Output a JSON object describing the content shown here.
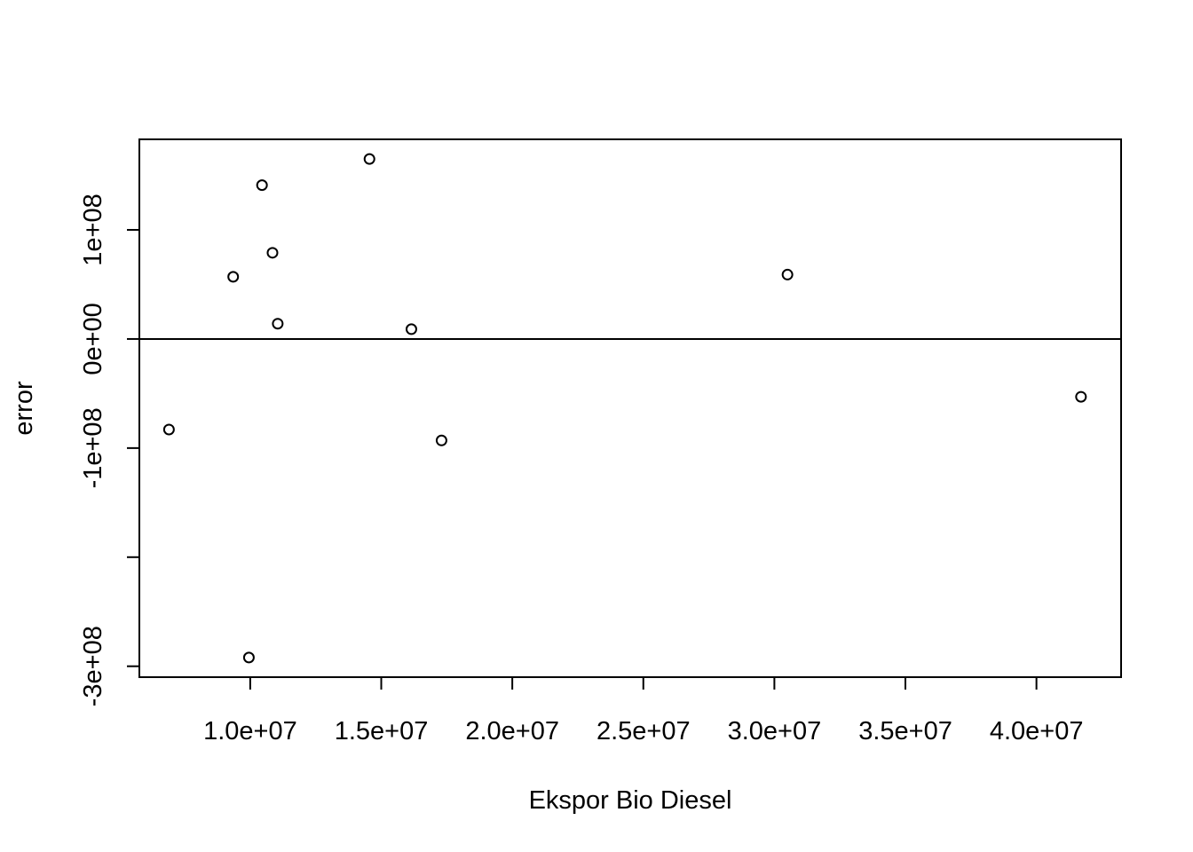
{
  "chart_data": {
    "type": "scatter",
    "title": "",
    "xlabel": "Ekspor Bio Diesel",
    "ylabel": "error",
    "xlim": [
      5770000,
      43230000
    ],
    "ylim": [
      -310000000,
      183000000
    ],
    "x_ticks": [
      10000000,
      15000000,
      20000000,
      25000000,
      30000000,
      35000000,
      40000000
    ],
    "x_tick_labels": [
      "1.0e+07",
      "1.5e+07",
      "2.0e+07",
      "2.5e+07",
      "3.0e+07",
      "3.5e+07",
      "4.0e+07"
    ],
    "y_ticks": [
      -300000000,
      -200000000,
      -100000000,
      0,
      100000000
    ],
    "y_tick_labels": [
      "-3e+08",
      "",
      "-1e+08",
      "0e+00",
      "1e+08"
    ],
    "reference_line_y": 0,
    "grid": false,
    "legend": "none",
    "point_style": "open-circle",
    "points": [
      {
        "x": 6900000,
        "y": -83000000
      },
      {
        "x": 9350000,
        "y": 57000000
      },
      {
        "x": 9950000,
        "y": -292000000
      },
      {
        "x": 10450000,
        "y": 141000000
      },
      {
        "x": 10850000,
        "y": 79000000
      },
      {
        "x": 11050000,
        "y": 14000000
      },
      {
        "x": 14550000,
        "y": 165000000
      },
      {
        "x": 16150000,
        "y": 9000000
      },
      {
        "x": 17300000,
        "y": -93000000
      },
      {
        "x": 30500000,
        "y": 59000000
      },
      {
        "x": 41700000,
        "y": -53000000
      }
    ]
  }
}
